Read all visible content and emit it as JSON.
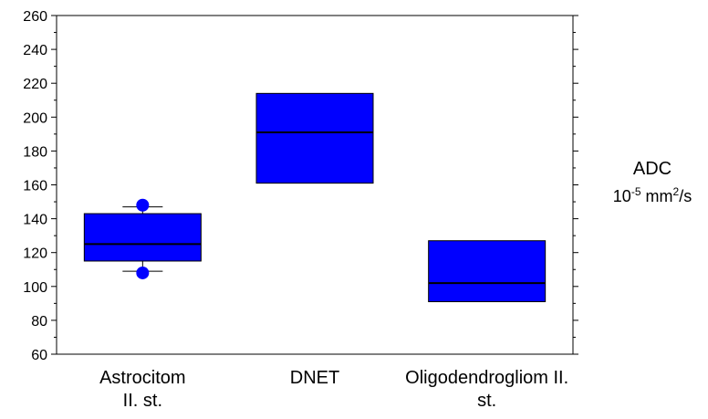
{
  "chart_data": {
    "type": "box",
    "categories": [
      [
        "Astrocitom",
        "II. st."
      ],
      [
        "DNET"
      ],
      [
        "Oligodendrogliom II.",
        "st."
      ]
    ],
    "boxes": [
      {
        "q1": 115,
        "median": 125,
        "q3": 143,
        "whisker_low": 109,
        "whisker_high": 147,
        "outliers": [
          108,
          148
        ]
      },
      {
        "q1": 161,
        "median": 191,
        "q3": 214
      },
      {
        "q1": 91,
        "median": 102,
        "q3": 127
      }
    ],
    "ylim": [
      60,
      260
    ],
    "yticks": [
      60,
      80,
      100,
      120,
      140,
      160,
      180,
      200,
      220,
      240,
      260
    ],
    "ylabel": {
      "name": "ADC",
      "unit_base": "10",
      "unit_exp": "-5",
      "unit_mid": " mm",
      "unit_exp2": "2",
      "unit_tail": "/s"
    },
    "colors": {
      "box_fill": "#0000ff",
      "stroke": "#000000",
      "outlier": "#0000ff"
    },
    "grid": false,
    "legend": "none"
  }
}
